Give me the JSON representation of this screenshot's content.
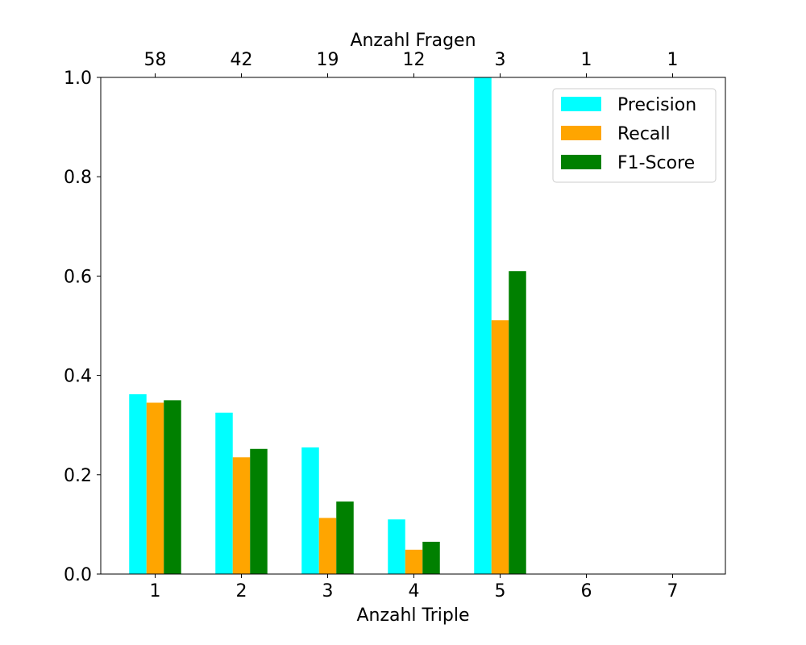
{
  "chart_data": {
    "type": "bar",
    "xlabel": "Anzahl Triple",
    "top_xlabel": "Anzahl Fragen",
    "categories": [
      "1",
      "2",
      "3",
      "4",
      "5",
      "6",
      "7"
    ],
    "top_categories": [
      "58",
      "42",
      "19",
      "12",
      "3",
      "1",
      "1"
    ],
    "ylim": [
      0,
      1.0
    ],
    "yticks": [
      "0.0",
      "0.2",
      "0.4",
      "0.6",
      "0.8",
      "1.0"
    ],
    "series": [
      {
        "name": "Precision",
        "color": "#00ffff",
        "values": [
          0.362,
          0.325,
          0.255,
          0.11,
          1.0,
          0,
          0
        ]
      },
      {
        "name": "Recall",
        "color": "#ffa500",
        "values": [
          0.345,
          0.235,
          0.113,
          0.049,
          0.511,
          0,
          0
        ]
      },
      {
        "name": "F1-Score",
        "color": "#008000",
        "values": [
          0.35,
          0.252,
          0.146,
          0.065,
          0.61,
          0,
          0
        ]
      }
    ],
    "legend": {
      "position": "top-right"
    },
    "grid": false
  }
}
